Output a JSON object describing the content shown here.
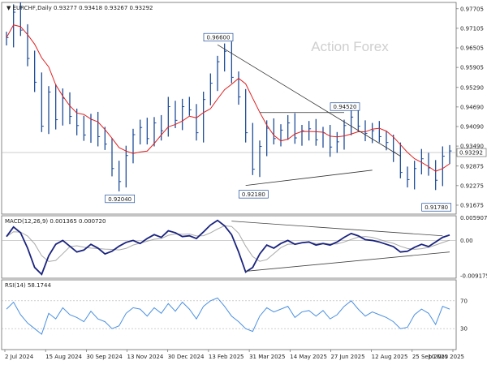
{
  "chart_data": [
    {
      "type": "candlestick",
      "title": "EURCHF,Daily",
      "ohlc": {
        "open": "0.93277",
        "high": "0.93418",
        "low": "0.93267",
        "close": "0.93292"
      },
      "current_price": "0.93292",
      "watermark": "Action Forex",
      "y_ticks": [
        "0.97705",
        "0.97105",
        "0.96505",
        "0.95905",
        "0.95290",
        "0.94690",
        "0.94090",
        "0.93490",
        "0.92875",
        "0.92275",
        "0.91675"
      ],
      "ylim": [
        0.914,
        0.979
      ],
      "moving_average_color": "#e02020",
      "price_color": "#1f4e99",
      "series_close": [
        0.9682,
        0.976,
        0.9705,
        0.9618,
        0.9545,
        0.941,
        0.9515,
        0.943,
        0.9496,
        0.944,
        0.9412,
        0.9383,
        0.943,
        0.9378,
        0.9355,
        0.928,
        0.924,
        0.932,
        0.9384,
        0.9406,
        0.9372,
        0.942,
        0.9396,
        0.947,
        0.9428,
        0.947,
        0.946,
        0.939,
        0.9492,
        0.9542,
        0.9608,
        0.964,
        0.956,
        0.95,
        0.939,
        0.9278,
        0.9348,
        0.9404,
        0.9372,
        0.9398,
        0.942,
        0.9374,
        0.9396,
        0.9402,
        0.9368,
        0.939,
        0.9346,
        0.9362,
        0.9412,
        0.9438,
        0.941,
        0.9388,
        0.9396,
        0.9378,
        0.936,
        0.933,
        0.9268,
        0.9246,
        0.928,
        0.931,
        0.9282,
        0.9244,
        0.9318,
        0.9334
      ],
      "annotations": [
        {
          "label": "0.96600",
          "value": 0.966
        },
        {
          "label": "0.94520",
          "value": 0.9452
        },
        {
          "label": "0.92180",
          "value": 0.9218
        },
        {
          "label": "0.92040",
          "value": 0.9204
        },
        {
          "label": "0.91780",
          "value": 0.9178
        }
      ],
      "x_ticks": [
        "2 Jul 2024",
        "15 Aug 2024",
        "30 Sep 2024",
        "13 Nov 2024",
        "30 Dec 2024",
        "13 Feb 2025",
        "31 Mar 2025",
        "14 May 2025",
        "27 Jun 2025",
        "12 Aug 2025",
        "25 Sep 2025",
        "10 Nov 2025"
      ]
    },
    {
      "type": "line",
      "title": "MACD(12,26,9) 0.001365 0.000720",
      "y_ticks": [
        "0.005907",
        "0.00",
        "-0.009175"
      ],
      "ylim": [
        -0.0098,
        0.0064
      ],
      "macd_color": "#1a237e",
      "signal_color": "#a9a9a9",
      "series_macd": [
        0.001,
        0.0035,
        0.002,
        -0.002,
        -0.007,
        -0.0088,
        -0.004,
        -0.001,
        0.0,
        -0.0015,
        -0.003,
        -0.0025,
        -0.001,
        -0.002,
        -0.0035,
        -0.0028,
        -0.0015,
        -0.0005,
        0.0,
        -0.0008,
        0.0005,
        0.0015,
        0.0008,
        0.0025,
        0.002,
        0.001,
        0.0012,
        0.0005,
        0.0022,
        0.004,
        0.0052,
        0.0038,
        0.0015,
        -0.003,
        -0.0082,
        -0.007,
        -0.0035,
        -0.0012,
        -0.002,
        -0.0008,
        0.0,
        -0.001,
        -0.0006,
        -0.0004,
        -0.0012,
        -0.0008,
        -0.0012,
        -0.0004,
        0.0008,
        0.0018,
        0.0012,
        0.0002,
        0.0,
        -0.0004,
        -0.001,
        -0.0016,
        -0.003,
        -0.0028,
        -0.0018,
        -0.001,
        -0.0016,
        -0.0004,
        0.0008,
        0.0014
      ]
    },
    {
      "type": "line",
      "title": "RSI(14) 58.1744",
      "y_ticks": [
        "70",
        "30"
      ],
      "ylim": [
        0,
        100
      ],
      "rsi_color": "#4a90e2",
      "series_rsi": [
        58,
        68,
        50,
        38,
        30,
        22,
        52,
        44,
        60,
        50,
        46,
        40,
        55,
        44,
        40,
        30,
        34,
        52,
        60,
        58,
        48,
        60,
        52,
        66,
        55,
        68,
        58,
        44,
        62,
        70,
        74,
        62,
        48,
        40,
        30,
        26,
        48,
        60,
        54,
        58,
        62,
        46,
        54,
        56,
        48,
        56,
        44,
        50,
        62,
        70,
        58,
        48,
        54,
        50,
        46,
        40,
        30,
        32,
        50,
        58,
        52,
        36,
        62,
        58
      ]
    }
  ]
}
